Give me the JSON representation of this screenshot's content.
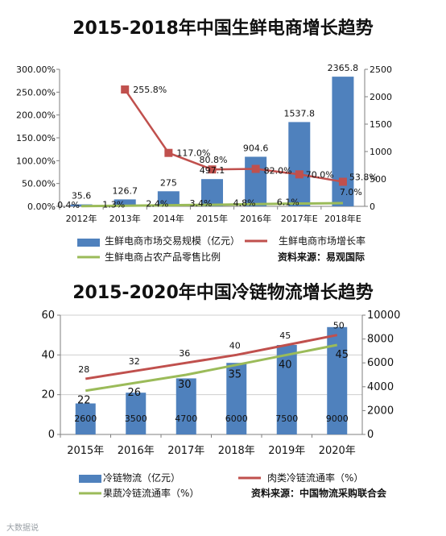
{
  "chart_data": [
    {
      "type": "bar",
      "title": "2015-2018年中国生鲜电商增长趋势",
      "categories": [
        "2012年",
        "2013年",
        "2014年",
        "2015年",
        "2016年",
        "2017年E",
        "2018年E"
      ],
      "bar_series": {
        "name": "生鲜电商市场交易规模（亿元）",
        "values": [
          35.6,
          126.7,
          275,
          497.1,
          904.6,
          1537.8,
          2365.8
        ],
        "labels": [
          "35.6",
          "126.7",
          "275",
          "497.1",
          "904.6",
          "1537.8",
          "2365.8"
        ],
        "color": "#4f81bd"
      },
      "line_series": [
        {
          "name": "生鲜电商市场增长率",
          "values": [
            null,
            255.8,
            117.0,
            80.8,
            82.0,
            70.0,
            53.8
          ],
          "labels": [
            "",
            "255.8%",
            "117.0%",
            "80.8%",
            "82.0%",
            "70.0%",
            "53.8%"
          ],
          "color": "#c0504d"
        },
        {
          "name": "生鲜电商占农产品零售比例",
          "values": [
            0.4,
            1.3,
            2.4,
            3.4,
            4.8,
            6.1,
            7.0
          ],
          "labels": [
            "0.4%",
            "1.3%",
            "2.4%",
            "3.4%",
            "4.8%",
            "6.1%",
            "7.0%"
          ],
          "color": "#9bbb59"
        }
      ],
      "y_left": {
        "min": 0,
        "max": 300,
        "ticks": [
          "0.00%",
          "50.00%",
          "100.00%",
          "150.00%",
          "200.00%",
          "250.00%",
          "300.00%"
        ]
      },
      "y_right": {
        "min": 0,
        "max": 2500,
        "ticks": [
          "0",
          "500",
          "1000",
          "1500",
          "2000",
          "2500"
        ]
      },
      "source": "资料来源：易观国际",
      "grid": false
    },
    {
      "type": "bar",
      "title": "2015-2020年中国冷链物流增长趋势",
      "categories": [
        "2015年",
        "2016年",
        "2017年",
        "2018年",
        "2019年",
        "2020年"
      ],
      "bar_series": {
        "name": "冷链物流（亿元）",
        "values": [
          2600,
          3500,
          4700,
          6000,
          7500,
          9000
        ],
        "labels": [
          "2600",
          "3500",
          "4700",
          "6000",
          "7500",
          "9000"
        ],
        "color": "#4f81bd"
      },
      "line_series": [
        {
          "name": "肉类冷链流通率（%）",
          "values": [
            28,
            32,
            36,
            40,
            45,
            50
          ],
          "labels": [
            "28",
            "32",
            "36",
            "40",
            "45",
            "50"
          ],
          "color": "#c0504d"
        },
        {
          "name": "果蔬冷链流通率（%）",
          "values": [
            22,
            26,
            30,
            35,
            40,
            45
          ],
          "labels": [
            "22",
            "26",
            "30",
            "35",
            "40",
            "45"
          ],
          "color": "#9bbb59"
        }
      ],
      "y_left": {
        "min": 0,
        "max": 60,
        "ticks": [
          "0",
          "20",
          "40",
          "60"
        ]
      },
      "y_right": {
        "min": 0,
        "max": 10000,
        "ticks": [
          "0",
          "2000",
          "4000",
          "6000",
          "8000",
          "10000"
        ]
      },
      "source": "资料来源：中国物流采购联合会",
      "grid": true
    }
  ],
  "watermark": "大数据说"
}
